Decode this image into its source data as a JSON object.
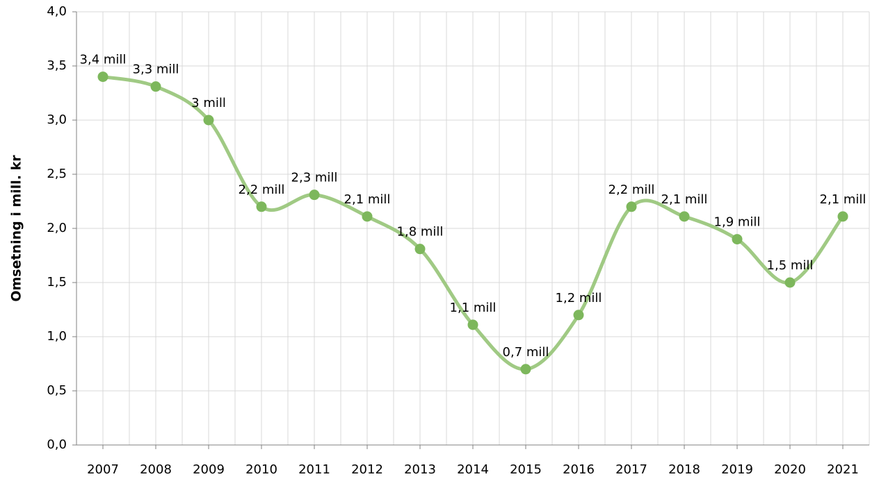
{
  "chart_data": {
    "type": "line",
    "ylabel": "Omsetning i mill. kr",
    "categories": [
      "2007",
      "2008",
      "2009",
      "2010",
      "2011",
      "2012",
      "2013",
      "2014",
      "2015",
      "2016",
      "2017",
      "2018",
      "2019",
      "2020",
      "2021"
    ],
    "values": [
      3.4,
      3.31,
      3.0,
      2.2,
      2.31,
      2.11,
      1.81,
      1.11,
      0.7,
      1.2,
      2.2,
      2.11,
      1.9,
      1.5,
      2.11
    ],
    "value_labels": [
      "3,4 mill",
      "3,3 mill",
      "3 mill",
      "2,2 mill",
      "2,3 mill",
      "2,1 mill",
      "1,8 mill",
      "1,1 mill",
      "0,7 mill",
      "1,2 mill",
      "2,2 mill",
      "2,1 mill",
      "1,9 mill",
      "1,5 mill",
      "2,1 mill"
    ],
    "color": "#8fc16f",
    "ylim": [
      0,
      4
    ],
    "yticks": [
      {
        "value": 0,
        "label": "0,0"
      },
      {
        "value": 0.5,
        "label": "0,5"
      },
      {
        "value": 1,
        "label": "1,0"
      },
      {
        "value": 1.5,
        "label": "1,5"
      },
      {
        "value": 2,
        "label": "2,0"
      },
      {
        "value": 2.5,
        "label": "2,5"
      },
      {
        "value": 3,
        "label": "3,0"
      },
      {
        "value": 3.5,
        "label": "3,5"
      },
      {
        "value": 4,
        "label": "4,0"
      }
    ],
    "grid": true,
    "smooth": true
  }
}
